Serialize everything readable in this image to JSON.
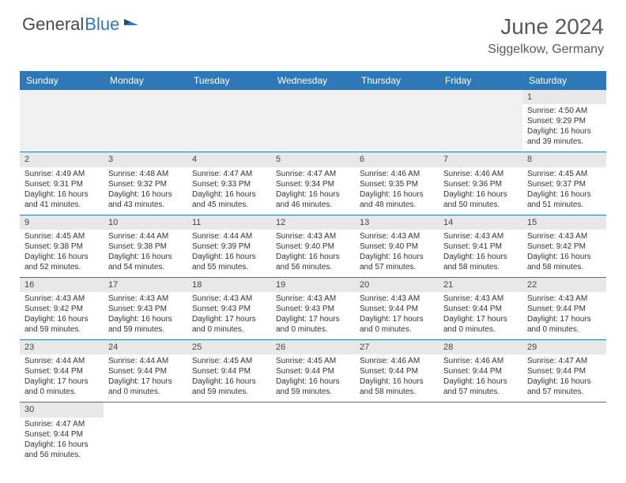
{
  "logo": {
    "text1": "General",
    "text2": "Blue"
  },
  "title": {
    "month": "June 2024",
    "location": "Siggelkow, Germany"
  },
  "day_headers": [
    "Sunday",
    "Monday",
    "Tuesday",
    "Wednesday",
    "Thursday",
    "Friday",
    "Saturday"
  ],
  "colors": {
    "header_bg": "#2f78b7",
    "header_text": "#ffffff",
    "daynum_bg": "#e8e8e8",
    "empty_bg": "#f0f0f0",
    "row_border": "#2f78b7",
    "text": "#333333",
    "title_text": "#5a5a5a"
  },
  "weeks": [
    [
      {
        "empty": true
      },
      {
        "empty": true
      },
      {
        "empty": true
      },
      {
        "empty": true
      },
      {
        "empty": true
      },
      {
        "empty": true
      },
      {
        "day": "1",
        "sunrise": "4:50 AM",
        "sunset": "9:29 PM",
        "daylight": "16 hours and 39 minutes."
      }
    ],
    [
      {
        "day": "2",
        "sunrise": "4:49 AM",
        "sunset": "9:31 PM",
        "daylight": "16 hours and 41 minutes."
      },
      {
        "day": "3",
        "sunrise": "4:48 AM",
        "sunset": "9:32 PM",
        "daylight": "16 hours and 43 minutes."
      },
      {
        "day": "4",
        "sunrise": "4:47 AM",
        "sunset": "9:33 PM",
        "daylight": "16 hours and 45 minutes."
      },
      {
        "day": "5",
        "sunrise": "4:47 AM",
        "sunset": "9:34 PM",
        "daylight": "16 hours and 46 minutes."
      },
      {
        "day": "6",
        "sunrise": "4:46 AM",
        "sunset": "9:35 PM",
        "daylight": "16 hours and 48 minutes."
      },
      {
        "day": "7",
        "sunrise": "4:46 AM",
        "sunset": "9:36 PM",
        "daylight": "16 hours and 50 minutes."
      },
      {
        "day": "8",
        "sunrise": "4:45 AM",
        "sunset": "9:37 PM",
        "daylight": "16 hours and 51 minutes."
      }
    ],
    [
      {
        "day": "9",
        "sunrise": "4:45 AM",
        "sunset": "9:38 PM",
        "daylight": "16 hours and 52 minutes."
      },
      {
        "day": "10",
        "sunrise": "4:44 AM",
        "sunset": "9:38 PM",
        "daylight": "16 hours and 54 minutes."
      },
      {
        "day": "11",
        "sunrise": "4:44 AM",
        "sunset": "9:39 PM",
        "daylight": "16 hours and 55 minutes."
      },
      {
        "day": "12",
        "sunrise": "4:43 AM",
        "sunset": "9:40 PM",
        "daylight": "16 hours and 56 minutes."
      },
      {
        "day": "13",
        "sunrise": "4:43 AM",
        "sunset": "9:40 PM",
        "daylight": "16 hours and 57 minutes."
      },
      {
        "day": "14",
        "sunrise": "4:43 AM",
        "sunset": "9:41 PM",
        "daylight": "16 hours and 58 minutes."
      },
      {
        "day": "15",
        "sunrise": "4:43 AM",
        "sunset": "9:42 PM",
        "daylight": "16 hours and 58 minutes."
      }
    ],
    [
      {
        "day": "16",
        "sunrise": "4:43 AM",
        "sunset": "9:42 PM",
        "daylight": "16 hours and 59 minutes."
      },
      {
        "day": "17",
        "sunrise": "4:43 AM",
        "sunset": "9:43 PM",
        "daylight": "16 hours and 59 minutes."
      },
      {
        "day": "18",
        "sunrise": "4:43 AM",
        "sunset": "9:43 PM",
        "daylight": "17 hours and 0 minutes."
      },
      {
        "day": "19",
        "sunrise": "4:43 AM",
        "sunset": "9:43 PM",
        "daylight": "17 hours and 0 minutes."
      },
      {
        "day": "20",
        "sunrise": "4:43 AM",
        "sunset": "9:44 PM",
        "daylight": "17 hours and 0 minutes."
      },
      {
        "day": "21",
        "sunrise": "4:43 AM",
        "sunset": "9:44 PM",
        "daylight": "17 hours and 0 minutes."
      },
      {
        "day": "22",
        "sunrise": "4:43 AM",
        "sunset": "9:44 PM",
        "daylight": "17 hours and 0 minutes."
      }
    ],
    [
      {
        "day": "23",
        "sunrise": "4:44 AM",
        "sunset": "9:44 PM",
        "daylight": "17 hours and 0 minutes."
      },
      {
        "day": "24",
        "sunrise": "4:44 AM",
        "sunset": "9:44 PM",
        "daylight": "17 hours and 0 minutes."
      },
      {
        "day": "25",
        "sunrise": "4:45 AM",
        "sunset": "9:44 PM",
        "daylight": "16 hours and 59 minutes."
      },
      {
        "day": "26",
        "sunrise": "4:45 AM",
        "sunset": "9:44 PM",
        "daylight": "16 hours and 59 minutes."
      },
      {
        "day": "27",
        "sunrise": "4:46 AM",
        "sunset": "9:44 PM",
        "daylight": "16 hours and 58 minutes."
      },
      {
        "day": "28",
        "sunrise": "4:46 AM",
        "sunset": "9:44 PM",
        "daylight": "16 hours and 57 minutes."
      },
      {
        "day": "29",
        "sunrise": "4:47 AM",
        "sunset": "9:44 PM",
        "daylight": "16 hours and 57 minutes."
      }
    ],
    [
      {
        "day": "30",
        "sunrise": "4:47 AM",
        "sunset": "9:44 PM",
        "daylight": "16 hours and 56 minutes."
      },
      {
        "empty": true
      },
      {
        "empty": true
      },
      {
        "empty": true
      },
      {
        "empty": true
      },
      {
        "empty": true
      },
      {
        "empty": true
      }
    ]
  ],
  "labels": {
    "sunrise_prefix": "Sunrise: ",
    "sunset_prefix": "Sunset: ",
    "daylight_prefix": "Daylight: "
  }
}
